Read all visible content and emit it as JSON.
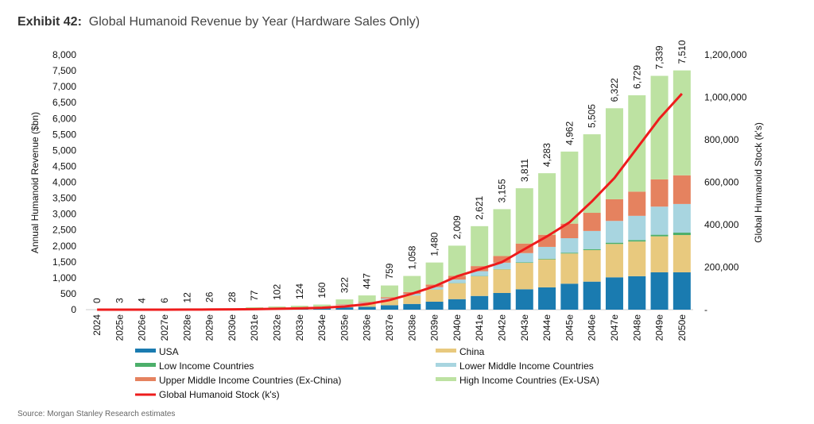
{
  "chart_data": {
    "type": "bar",
    "title_prefix": "Exhibit 42:",
    "title": "Global Humanoid Revenue by Year (Hardware Sales Only)",
    "ylabel": "Annual Humanoid Revenue ($bn)",
    "y2label": "Global Humanoid Stock (k's)",
    "ylim": [
      0,
      8000
    ],
    "y2lim": [
      0,
      1200000
    ],
    "yticks": [
      "0",
      "500",
      "1,000",
      "1,500",
      "2,000",
      "2,500",
      "3,000",
      "3,500",
      "4,000",
      "4,500",
      "5,000",
      "5,500",
      "6,000",
      "6,500",
      "7,000",
      "7,500",
      "8,000"
    ],
    "y2ticks": [
      "-",
      "200,000",
      "400,000",
      "600,000",
      "800,000",
      "1,000,000",
      "1,200,000"
    ],
    "categories": [
      "2024",
      "2025e",
      "2026e",
      "2027e",
      "2028e",
      "2029e",
      "2030e",
      "2031e",
      "2032e",
      "2033e",
      "2034e",
      "2035e",
      "2036e",
      "2037e",
      "2038e",
      "2039e",
      "2040e",
      "2041e",
      "2042e",
      "2043e",
      "2044e",
      "2045e",
      "2046e",
      "2047e",
      "2048e",
      "2049e",
      "2050e"
    ],
    "totals": [
      "0",
      "3",
      "4",
      "6",
      "12",
      "26",
      "28",
      "77",
      "102",
      "124",
      "160",
      "322",
      "447",
      "759",
      "1,058",
      "1,480",
      "2,009",
      "2,621",
      "3,155",
      "3,811",
      "4,283",
      "4,962",
      "5,505",
      "6,322",
      "6,729",
      "7,339",
      "7,510"
    ],
    "series": [
      {
        "name": "USA",
        "color": "#1a7bb0",
        "values": [
          0,
          1,
          1,
          2,
          3,
          6,
          7,
          18,
          24,
          29,
          37,
          72,
          90,
          140,
          180,
          250,
          330,
          430,
          524,
          640,
          700,
          815,
          880,
          1015,
          1050,
          1172,
          1172
        ]
      },
      {
        "name": "China",
        "color": "#e8c97e",
        "values": [
          0,
          1,
          1,
          2,
          3,
          6,
          6,
          17,
          22,
          27,
          35,
          70,
          100,
          170,
          260,
          380,
          500,
          620,
          740,
          830,
          880,
          948,
          990,
          1047,
          1090,
          1130,
          1170
        ]
      },
      {
        "name": "Low Income Countries",
        "color": "#4caf6a",
        "values": [
          0,
          0,
          0,
          0,
          0,
          0,
          0,
          0,
          0,
          0,
          0,
          1,
          1,
          2,
          3,
          4,
          5,
          8,
          10,
          15,
          20,
          25,
          30,
          40,
          45,
          50,
          75
        ]
      },
      {
        "name": "Lower Middle Income Countries",
        "color": "#a8d5e0",
        "values": [
          0,
          0,
          0,
          0,
          0,
          1,
          1,
          3,
          4,
          5,
          7,
          15,
          25,
          40,
          55,
          75,
          110,
          150,
          200,
          290,
          370,
          455,
          570,
          683,
          760,
          882,
          900
        ]
      },
      {
        "name": "Upper Middle Income Countries (Ex-China)",
        "color": "#e5825f",
        "values": [
          0,
          0,
          0,
          0,
          0,
          1,
          1,
          3,
          4,
          5,
          7,
          15,
          25,
          40,
          55,
          80,
          115,
          160,
          210,
          300,
          380,
          457,
          570,
          681,
          760,
          856,
          900
        ]
      },
      {
        "name": "High Income Countries (Ex-USA)",
        "color": "#bde2a2",
        "values": [
          0,
          1,
          2,
          2,
          6,
          12,
          13,
          36,
          48,
          58,
          74,
          149,
          206,
          367,
          505,
          691,
          949,
          1253,
          1471,
          1736,
          1933,
          2262,
          2465,
          2856,
          3024,
          3249,
          3293
        ]
      }
    ],
    "line": {
      "name": "Global Humanoid Stock (k's)",
      "color": "#ee1c1c",
      "values": [
        0,
        0,
        0,
        100,
        300,
        800,
        1500,
        2500,
        4000,
        6000,
        9000,
        15000,
        26000,
        45000,
        75000,
        110000,
        157000,
        190000,
        224000,
        285000,
        345000,
        411000,
        510000,
        620000,
        760000,
        900000,
        1017000
      ]
    },
    "source": "Source: Morgan Stanley Research estimates"
  }
}
